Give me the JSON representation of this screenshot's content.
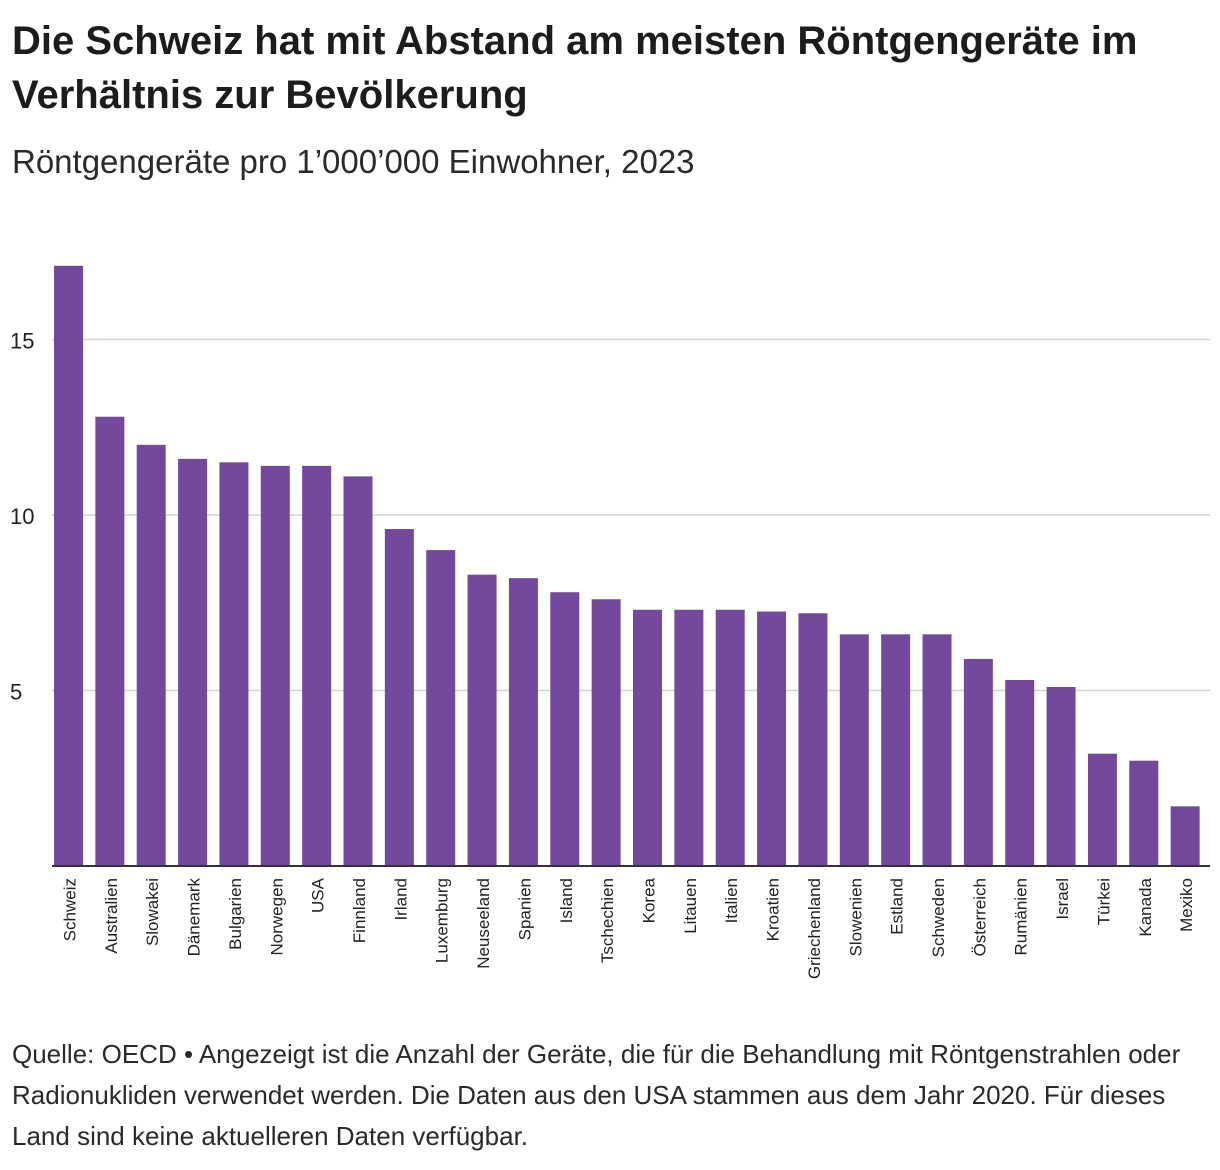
{
  "header": {
    "title": "Die Schweiz hat mit Abstand am meisten Röntgengeräte im Verhältnis zur Bevölkerung",
    "subtitle": "Röntgengeräte pro 1’000’000 Einwohner, 2023"
  },
  "footer": {
    "note": "Quelle: OECD • Angezeigt ist die Anzahl der Geräte, die für die Behandlung mit Röntgenstrahlen oder Radionukliden verwendet werden. Die Daten aus den USA stammen aus dem Jahr 2020. Für dieses Land sind keine aktuelleren Daten verfügbar."
  },
  "colors": {
    "bar": "#74489d",
    "grid": "#d4d4d4",
    "axis": "#333333",
    "text": "#222222"
  },
  "chart_data": {
    "type": "bar",
    "title": "Die Schweiz hat mit Abstand am meisten Röntgengeräte im Verhältnis zur Bevölkerung",
    "subtitle": "Röntgengeräte pro 1’000’000 Einwohner, 2023",
    "xlabel": "",
    "ylabel": "",
    "ylim": [
      0,
      17.1
    ],
    "yticks": [
      5,
      10,
      15
    ],
    "grid": true,
    "categories": [
      "Schweiz",
      "Australien",
      "Slowakei",
      "Dänemark",
      "Bulgarien",
      "Norwegen",
      "USA",
      "Finnland",
      "Irland",
      "Luxemburg",
      "Neuseeland",
      "Spanien",
      "Island",
      "Tschechien",
      "Korea",
      "Litauen",
      "Italien",
      "Kroatien",
      "Griechenland",
      "Slowenien",
      "Estland",
      "Schweden",
      "Österreich",
      "Rumänien",
      "Israel",
      "Türkei",
      "Kanada",
      "Mexiko"
    ],
    "values": [
      17.1,
      12.8,
      12.0,
      11.6,
      11.5,
      11.4,
      11.4,
      11.1,
      9.6,
      9.0,
      8.3,
      8.2,
      7.8,
      7.6,
      7.3,
      7.3,
      7.3,
      7.25,
      7.2,
      6.6,
      6.6,
      6.6,
      5.9,
      5.3,
      5.1,
      3.2,
      3.0,
      1.7
    ]
  }
}
